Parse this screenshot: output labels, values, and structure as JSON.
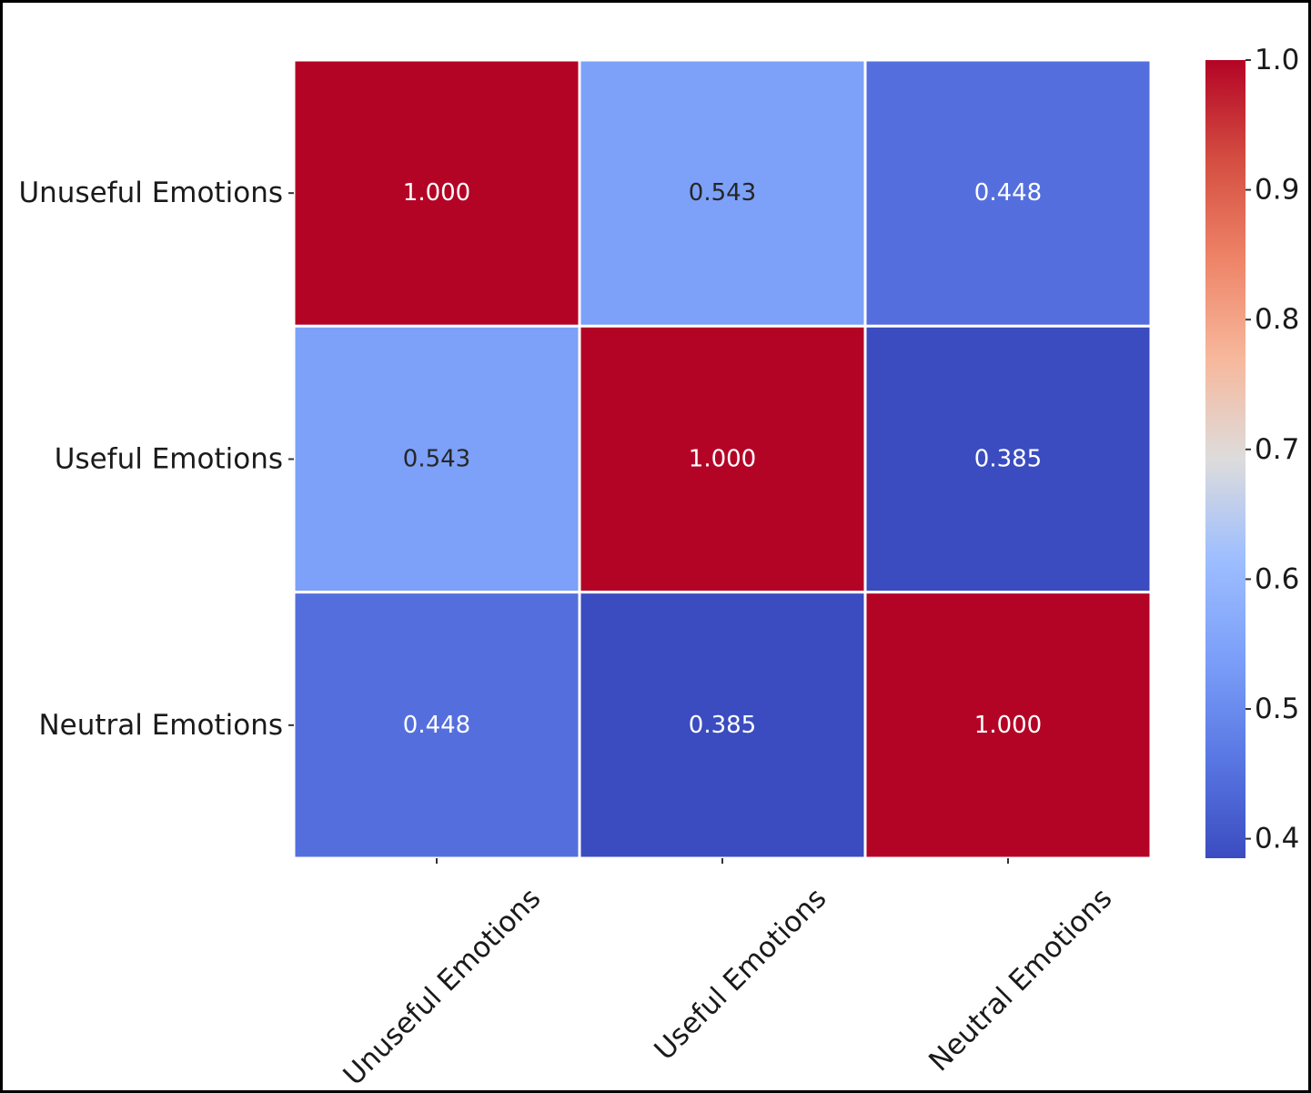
{
  "chart_data": {
    "type": "heatmap",
    "row_labels": [
      "Unuseful Emotions",
      "Useful Emotions",
      "Neutral Emotions"
    ],
    "col_labels": [
      "Unuseful Emotions",
      "Useful Emotions",
      "Neutral Emotions"
    ],
    "values": [
      [
        1.0,
        0.543,
        0.448
      ],
      [
        0.543,
        1.0,
        0.385
      ],
      [
        0.448,
        0.385,
        1.0
      ]
    ],
    "cell_labels": [
      [
        "1.000",
        "0.543",
        "0.448"
      ],
      [
        "0.543",
        "1.000",
        "0.385"
      ],
      [
        "0.448",
        "0.385",
        "1.000"
      ]
    ],
    "colorbar": {
      "colormap": "coolwarm",
      "range": [
        0.385,
        1.0
      ],
      "ticks": [
        1.0,
        0.9,
        0.8,
        0.7,
        0.6,
        0.5,
        0.4
      ],
      "tick_labels": [
        "1.0",
        "0.9",
        "0.8",
        "0.7",
        "0.6",
        "0.5",
        "0.4"
      ]
    },
    "title": "",
    "xlabel": "",
    "ylabel": ""
  },
  "colors": {
    "cell_border": "#ffffff",
    "text_dark": "#262626",
    "text_light": "#ffffff",
    "frame": "#000000"
  }
}
